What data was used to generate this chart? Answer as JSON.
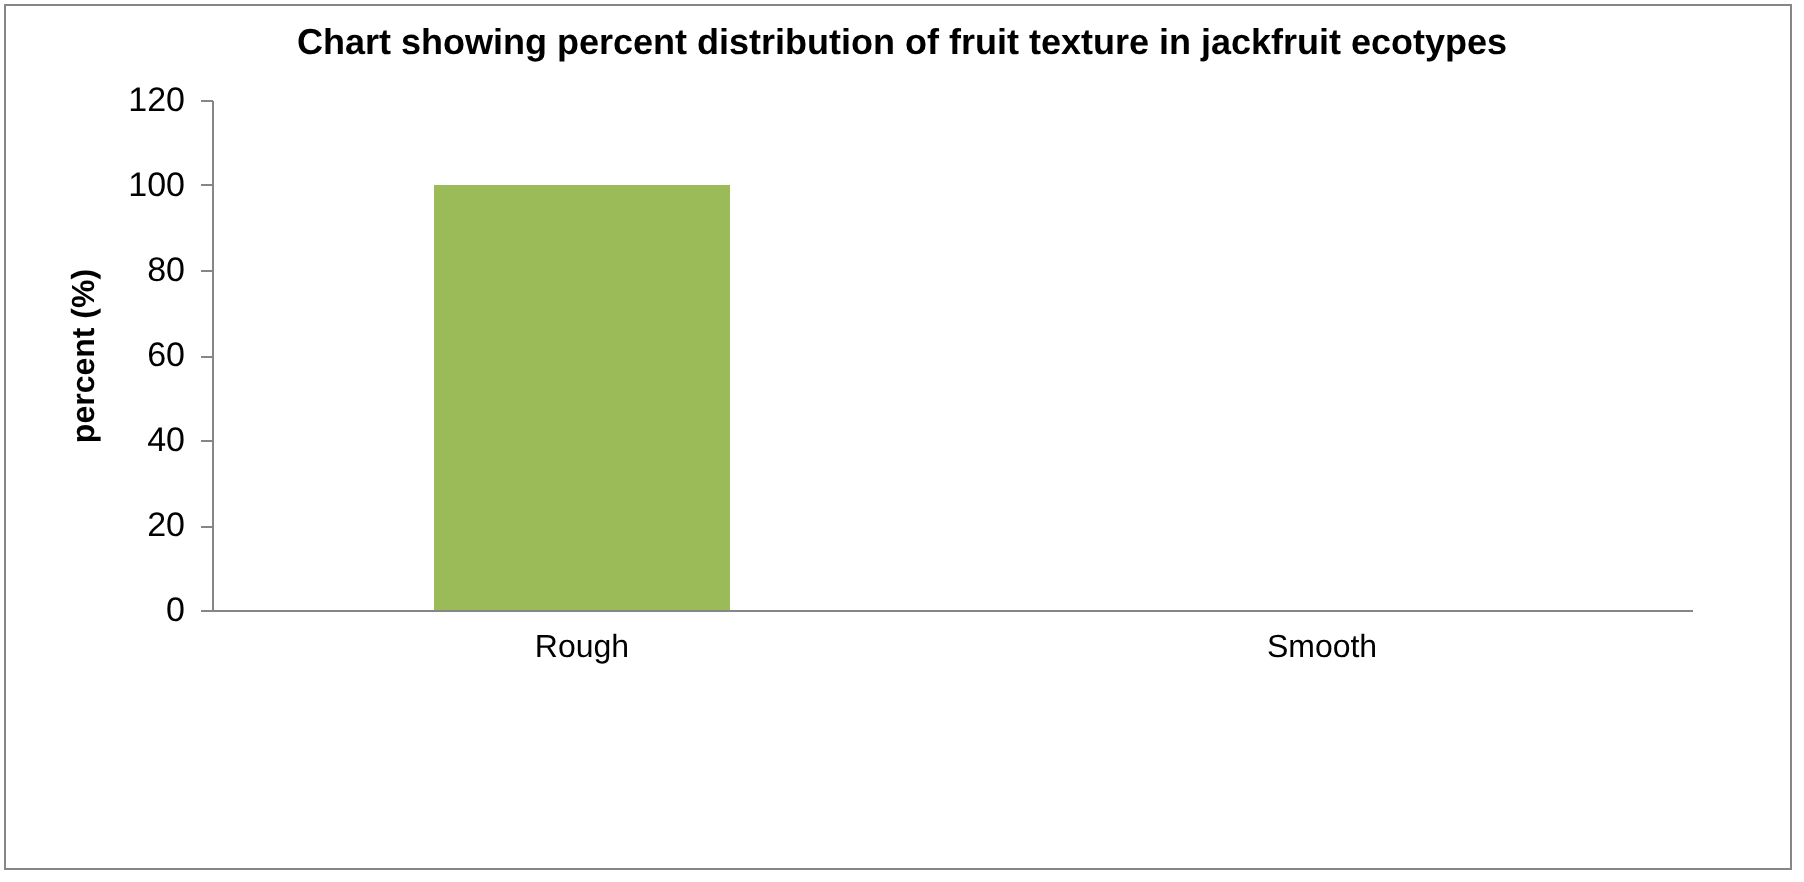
{
  "chart_data": {
    "type": "bar",
    "title": "Chart showing percent distribution of fruit texture in jackfruit ecotypes",
    "ylabel": "percent (%)",
    "categories": [
      "Rough",
      "Smooth"
    ],
    "values": [
      100,
      0
    ],
    "color": "#9bbb59",
    "ylim": [
      0,
      120
    ],
    "yticks": [
      0,
      20,
      40,
      60,
      80,
      100,
      120
    ],
    "grid": false
  }
}
